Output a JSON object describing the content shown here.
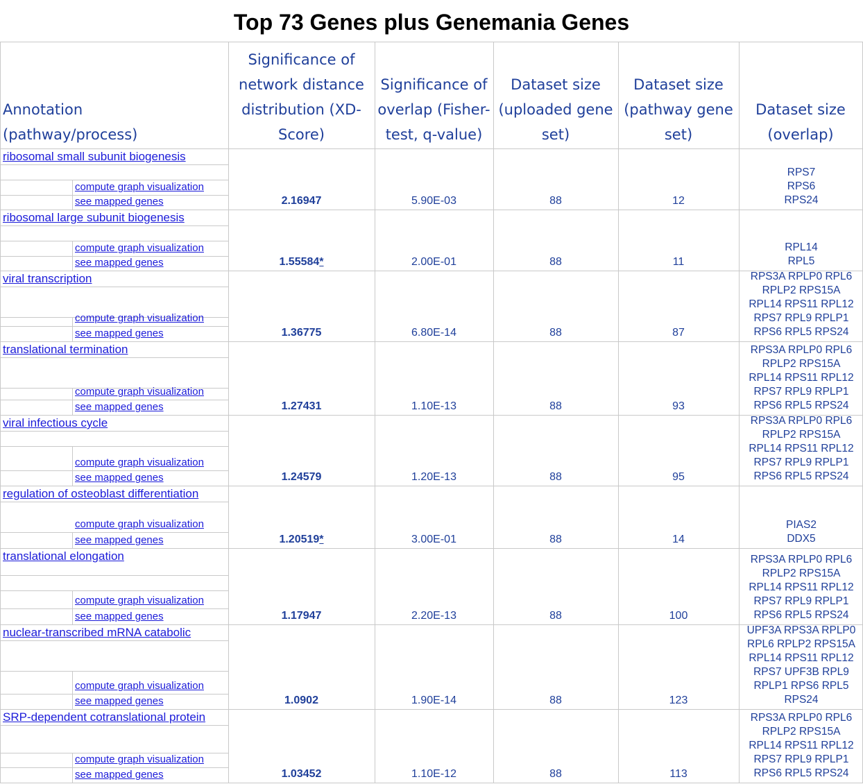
{
  "title": "Top 73 Genes plus Genemania Genes",
  "headers": [
    "Annotation\n(pathway/process)",
    "Significance of\nnetwork distance\ndistribution (XD-\nScore)",
    "Significance of\noverlap (Fisher-\ntest, q-value)",
    "Dataset size\n(uploaded gene\nset)",
    "Dataset size\n(pathway gene\nset)",
    "Dataset size\n(overlap)"
  ],
  "sub_links": {
    "compute": "compute graph visualization",
    "mapped": "see mapped genes"
  },
  "rows": [
    {
      "annotation": "ribosomal small subunit biogenesis",
      "xd": "2.16947",
      "star": "",
      "q": "5.90E-03",
      "uploaded": "88",
      "pathway": "12",
      "overlap": [
        "RPS7",
        "RPS6",
        "RPS24"
      ]
    },
    {
      "annotation": "ribosomal large subunit biogenesis",
      "xd": "1.55584",
      "star": "*",
      "q": "2.00E-01",
      "uploaded": "88",
      "pathway": "11",
      "overlap": [
        "RPL14",
        "RPL5"
      ]
    },
    {
      "annotation": "viral transcription",
      "xd": "1.36775",
      "star": "",
      "q": "6.80E-14",
      "uploaded": "88",
      "pathway": "87",
      "overlap": [
        "RPS3A RPLP0 RPL6",
        "RPLP2 RPS15A",
        "RPL14 RPS11 RPL12",
        "RPS7 RPL9 RPLP1",
        "RPS6 RPL5 RPS24"
      ]
    },
    {
      "annotation": "translational termination",
      "xd": "1.27431",
      "star": "",
      "q": "1.10E-13",
      "uploaded": "88",
      "pathway": "93",
      "overlap": [
        "RPS3A RPLP0 RPL6",
        "RPLP2 RPS15A",
        "RPL14 RPS11 RPL12",
        "RPS7 RPL9 RPLP1",
        "RPS6 RPL5 RPS24"
      ]
    },
    {
      "annotation": "viral infectious cycle",
      "xd": "1.24579",
      "star": "",
      "q": "1.20E-13",
      "uploaded": "88",
      "pathway": "95",
      "overlap": [
        "RPS3A RPLP0 RPL6",
        "RPLP2 RPS15A",
        "RPL14 RPS11 RPL12",
        "RPS7 RPL9 RPLP1",
        "RPS6 RPL5 RPS24"
      ]
    },
    {
      "annotation": "regulation of osteoblast differentiation",
      "xd": "1.20519",
      "star": "*",
      "q": "3.00E-01",
      "uploaded": "88",
      "pathway": "14",
      "overlap": [
        "PIAS2",
        "DDX5"
      ]
    },
    {
      "annotation": "translational elongation",
      "xd": "1.17947",
      "star": "",
      "q": "2.20E-13",
      "uploaded": "88",
      "pathway": "100",
      "overlap": [
        "RPS3A RPLP0 RPL6",
        "RPLP2 RPS15A",
        "RPL14 RPS11 RPL12",
        "RPS7 RPL9 RPLP1",
        "RPS6 RPL5 RPS24"
      ]
    },
    {
      "annotation": "nuclear-transcribed mRNA catabolic ",
      "xd": "1.0902",
      "star": "",
      "q": "1.90E-14",
      "uploaded": "88",
      "pathway": "123",
      "overlap": [
        "UPF3A RPS3A RPLP0",
        "RPL6 RPLP2 RPS15A",
        "RPL14 RPS11 RPL12",
        "RPS7 UPF3B RPL9",
        "RPLP1 RPS6 RPL5",
        "RPS24"
      ]
    },
    {
      "annotation": "SRP-dependent cotranslational protein ",
      "xd": "1.03452",
      "star": "",
      "q": "1.10E-12",
      "uploaded": "88",
      "pathway": "113",
      "overlap": [
        "RPS3A RPLP0 RPL6",
        "RPLP2 RPS15A",
        "RPL14 RPS11 RPL12",
        "RPS7 RPL9 RPLP1",
        "RPS6 RPL5 RPS24"
      ]
    }
  ]
}
